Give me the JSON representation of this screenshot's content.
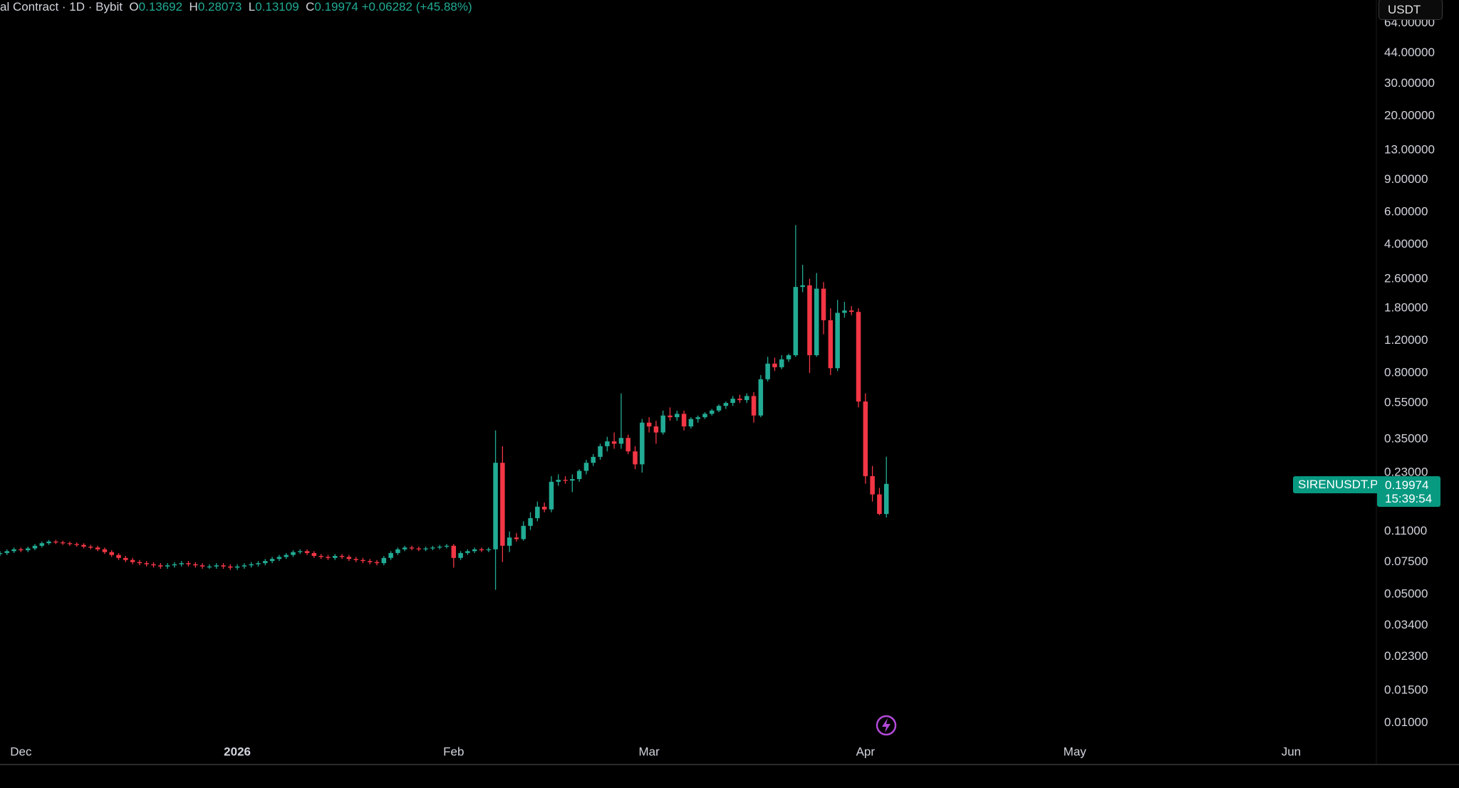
{
  "header": {
    "symbol": "al Contract · 1D · Bybit",
    "o": "O",
    "h": "H",
    "l": "L",
    "c": "C",
    "change": "+0.06282",
    "change_pct": "(+45.88%)"
  },
  "currency": "USDT",
  "symbol_tag": "SIRENUSDT.P",
  "countdown": "15:39:54",
  "chart_data": {
    "type": "candlestick",
    "log_scale": true,
    "grid": false,
    "up_color": "#22ab94",
    "down_color": "#f23645",
    "xlim": [
      0,
      197
    ],
    "xticks": [
      {
        "value": 3,
        "label": "Dec"
      },
      {
        "value": 34,
        "label": "2026"
      },
      {
        "value": 65,
        "label": "Feb"
      },
      {
        "value": 93,
        "label": "Mar"
      },
      {
        "value": 124,
        "label": "Apr"
      },
      {
        "value": 154,
        "label": "May"
      },
      {
        "value": 185,
        "label": "Jun"
      }
    ],
    "ylim": [
      0.0082,
      85.4
    ],
    "yticks": [
      {
        "value": 64,
        "label": "64.00000"
      },
      {
        "value": 44,
        "label": "44.00000"
      },
      {
        "value": 30,
        "label": "30.00000"
      },
      {
        "value": 20,
        "label": "20.00000"
      },
      {
        "value": 13,
        "label": "13.00000"
      },
      {
        "value": 9,
        "label": "9.00000"
      },
      {
        "value": 6,
        "label": "6.00000"
      },
      {
        "value": 4,
        "label": "4.00000"
      },
      {
        "value": 2.6,
        "label": "2.60000"
      },
      {
        "value": 1.8,
        "label": "1.80000"
      },
      {
        "value": 1.2,
        "label": "1.20000"
      },
      {
        "value": 0.8,
        "label": "0.80000"
      },
      {
        "value": 0.55,
        "label": "0.55000"
      },
      {
        "value": 0.35,
        "label": "0.35000"
      },
      {
        "value": 0.23,
        "label": "0.23000"
      },
      {
        "value": 0.11,
        "label": "0.11000"
      },
      {
        "value": 0.075,
        "label": "0.07500"
      },
      {
        "value": 0.05,
        "label": "0.05000"
      },
      {
        "value": 0.034,
        "label": "0.03400"
      },
      {
        "value": 0.023,
        "label": "0.02300"
      },
      {
        "value": 0.015,
        "label": "0.01500"
      },
      {
        "value": 0.01,
        "label": "0.01000"
      }
    ],
    "x": [
      0,
      1,
      2,
      3,
      4,
      5,
      6,
      7,
      8,
      9,
      10,
      11,
      12,
      13,
      14,
      15,
      16,
      17,
      18,
      19,
      20,
      21,
      22,
      23,
      24,
      25,
      26,
      27,
      28,
      29,
      30,
      31,
      32,
      33,
      34,
      35,
      36,
      37,
      38,
      39,
      40,
      41,
      42,
      43,
      44,
      45,
      46,
      47,
      48,
      49,
      50,
      51,
      52,
      53,
      54,
      55,
      56,
      57,
      58,
      59,
      60,
      61,
      62,
      63,
      64,
      65,
      66,
      67,
      68,
      69,
      70,
      71,
      72,
      73,
      74,
      75,
      76,
      77,
      78,
      79,
      80,
      81,
      82,
      83,
      84,
      85,
      86,
      87,
      88,
      89,
      90,
      91,
      92,
      93,
      94,
      95,
      96,
      97,
      98,
      99,
      100,
      101,
      102,
      103,
      104,
      105,
      106,
      107,
      108,
      109,
      110,
      111,
      112,
      113,
      114,
      115,
      116,
      117,
      118,
      119,
      120,
      121,
      122,
      123,
      124,
      125,
      126,
      127
    ],
    "open": [
      0.083,
      0.084,
      0.086,
      0.088,
      0.087,
      0.089,
      0.092,
      0.095,
      0.097,
      0.096,
      0.095,
      0.094,
      0.093,
      0.091,
      0.09,
      0.088,
      0.085,
      0.082,
      0.079,
      0.077,
      0.075,
      0.074,
      0.073,
      0.072,
      0.071,
      0.072,
      0.073,
      0.074,
      0.073,
      0.072,
      0.071,
      0.071,
      0.072,
      0.071,
      0.07,
      0.071,
      0.072,
      0.073,
      0.074,
      0.076,
      0.078,
      0.08,
      0.082,
      0.085,
      0.086,
      0.084,
      0.081,
      0.08,
      0.079,
      0.081,
      0.08,
      0.078,
      0.077,
      0.076,
      0.075,
      0.074,
      0.079,
      0.084,
      0.088,
      0.09,
      0.089,
      0.088,
      0.089,
      0.09,
      0.091,
      0.092,
      0.079,
      0.084,
      0.086,
      0.088,
      0.087,
      0.088,
      0.26,
      0.092,
      0.102,
      0.1,
      0.118,
      0.13,
      0.15,
      0.145,
      0.205,
      0.21,
      0.208,
      0.212,
      0.235,
      0.26,
      0.28,
      0.32,
      0.34,
      0.33,
      0.355,
      0.3,
      0.255,
      0.43,
      0.41,
      0.38,
      0.47,
      0.46,
      0.48,
      0.41,
      0.45,
      0.46,
      0.48,
      0.5,
      0.53,
      0.55,
      0.58,
      0.57,
      0.6,
      0.47,
      0.74,
      0.9,
      0.86,
      0.95,
      1.0,
      2.35,
      2.4,
      1.0,
      2.3,
      1.55,
      0.85,
      1.7,
      1.75,
      1.72,
      0.56,
      0.22,
      0.175,
      0.13692
    ],
    "high": [
      0.086,
      0.088,
      0.09,
      0.09,
      0.091,
      0.094,
      0.097,
      0.099,
      0.099,
      0.098,
      0.097,
      0.096,
      0.095,
      0.093,
      0.092,
      0.09,
      0.087,
      0.084,
      0.081,
      0.079,
      0.077,
      0.076,
      0.075,
      0.074,
      0.074,
      0.075,
      0.076,
      0.076,
      0.075,
      0.074,
      0.073,
      0.074,
      0.074,
      0.073,
      0.073,
      0.074,
      0.075,
      0.076,
      0.078,
      0.08,
      0.082,
      0.084,
      0.087,
      0.088,
      0.088,
      0.086,
      0.083,
      0.082,
      0.083,
      0.083,
      0.082,
      0.08,
      0.079,
      0.078,
      0.077,
      0.081,
      0.086,
      0.09,
      0.092,
      0.092,
      0.091,
      0.091,
      0.092,
      0.093,
      0.094,
      0.094,
      0.086,
      0.088,
      0.09,
      0.09,
      0.09,
      0.39,
      0.32,
      0.11,
      0.108,
      0.125,
      0.14,
      0.16,
      0.158,
      0.22,
      0.225,
      0.22,
      0.225,
      0.24,
      0.27,
      0.29,
      0.33,
      0.36,
      0.38,
      0.62,
      0.37,
      0.32,
      0.45,
      0.46,
      0.44,
      0.5,
      0.52,
      0.5,
      0.5,
      0.46,
      0.47,
      0.49,
      0.51,
      0.54,
      0.56,
      0.6,
      0.61,
      0.62,
      0.63,
      0.78,
      0.98,
      0.97,
      1.0,
      1.02,
      5.1,
      3.1,
      2.6,
      2.8,
      2.5,
      1.8,
      2.0,
      1.95,
      1.85,
      1.8,
      0.62,
      0.25,
      0.19,
      0.28073
    ],
    "low": [
      0.081,
      0.082,
      0.084,
      0.085,
      0.085,
      0.087,
      0.09,
      0.093,
      0.094,
      0.093,
      0.092,
      0.091,
      0.089,
      0.088,
      0.086,
      0.083,
      0.08,
      0.077,
      0.075,
      0.073,
      0.072,
      0.071,
      0.07,
      0.069,
      0.069,
      0.07,
      0.071,
      0.071,
      0.07,
      0.069,
      0.069,
      0.069,
      0.069,
      0.068,
      0.068,
      0.069,
      0.07,
      0.071,
      0.072,
      0.074,
      0.076,
      0.078,
      0.08,
      0.083,
      0.082,
      0.079,
      0.078,
      0.077,
      0.077,
      0.078,
      0.076,
      0.075,
      0.074,
      0.073,
      0.072,
      0.072,
      0.077,
      0.082,
      0.086,
      0.087,
      0.086,
      0.086,
      0.087,
      0.088,
      0.089,
      0.07,
      0.077,
      0.082,
      0.084,
      0.085,
      0.085,
      0.053,
      0.075,
      0.085,
      0.097,
      0.098,
      0.112,
      0.125,
      0.14,
      0.14,
      0.195,
      0.2,
      0.18,
      0.205,
      0.225,
      0.25,
      0.27,
      0.3,
      0.31,
      0.31,
      0.29,
      0.24,
      0.23,
      0.38,
      0.33,
      0.37,
      0.44,
      0.44,
      0.39,
      0.4,
      0.43,
      0.45,
      0.47,
      0.49,
      0.51,
      0.53,
      0.55,
      0.55,
      0.43,
      0.46,
      0.72,
      0.82,
      0.84,
      0.92,
      0.98,
      2.2,
      0.8,
      0.98,
      1.3,
      0.78,
      0.82,
      1.6,
      1.65,
      0.52,
      0.2,
      0.16,
      0.135,
      0.13109
    ],
    "close": [
      0.084,
      0.086,
      0.088,
      0.087,
      0.089,
      0.092,
      0.095,
      0.097,
      0.096,
      0.095,
      0.094,
      0.093,
      0.091,
      0.09,
      0.088,
      0.085,
      0.082,
      0.079,
      0.077,
      0.075,
      0.074,
      0.073,
      0.072,
      0.071,
      0.072,
      0.073,
      0.074,
      0.073,
      0.072,
      0.071,
      0.071,
      0.072,
      0.071,
      0.07,
      0.071,
      0.072,
      0.073,
      0.074,
      0.076,
      0.078,
      0.08,
      0.082,
      0.085,
      0.086,
      0.084,
      0.081,
      0.08,
      0.079,
      0.081,
      0.08,
      0.078,
      0.077,
      0.076,
      0.075,
      0.074,
      0.079,
      0.084,
      0.088,
      0.09,
      0.089,
      0.088,
      0.089,
      0.09,
      0.091,
      0.092,
      0.079,
      0.084,
      0.086,
      0.088,
      0.087,
      0.088,
      0.26,
      0.092,
      0.102,
      0.1,
      0.118,
      0.13,
      0.15,
      0.145,
      0.205,
      0.21,
      0.208,
      0.212,
      0.235,
      0.26,
      0.28,
      0.32,
      0.34,
      0.33,
      0.355,
      0.3,
      0.255,
      0.43,
      0.41,
      0.38,
      0.47,
      0.46,
      0.48,
      0.41,
      0.45,
      0.46,
      0.48,
      0.5,
      0.53,
      0.55,
      0.58,
      0.57,
      0.6,
      0.47,
      0.74,
      0.9,
      0.86,
      0.95,
      1.0,
      2.35,
      2.4,
      1.0,
      2.3,
      1.55,
      0.85,
      1.7,
      1.75,
      1.72,
      0.56,
      0.22,
      0.175,
      0.137,
      0.19974
    ]
  }
}
